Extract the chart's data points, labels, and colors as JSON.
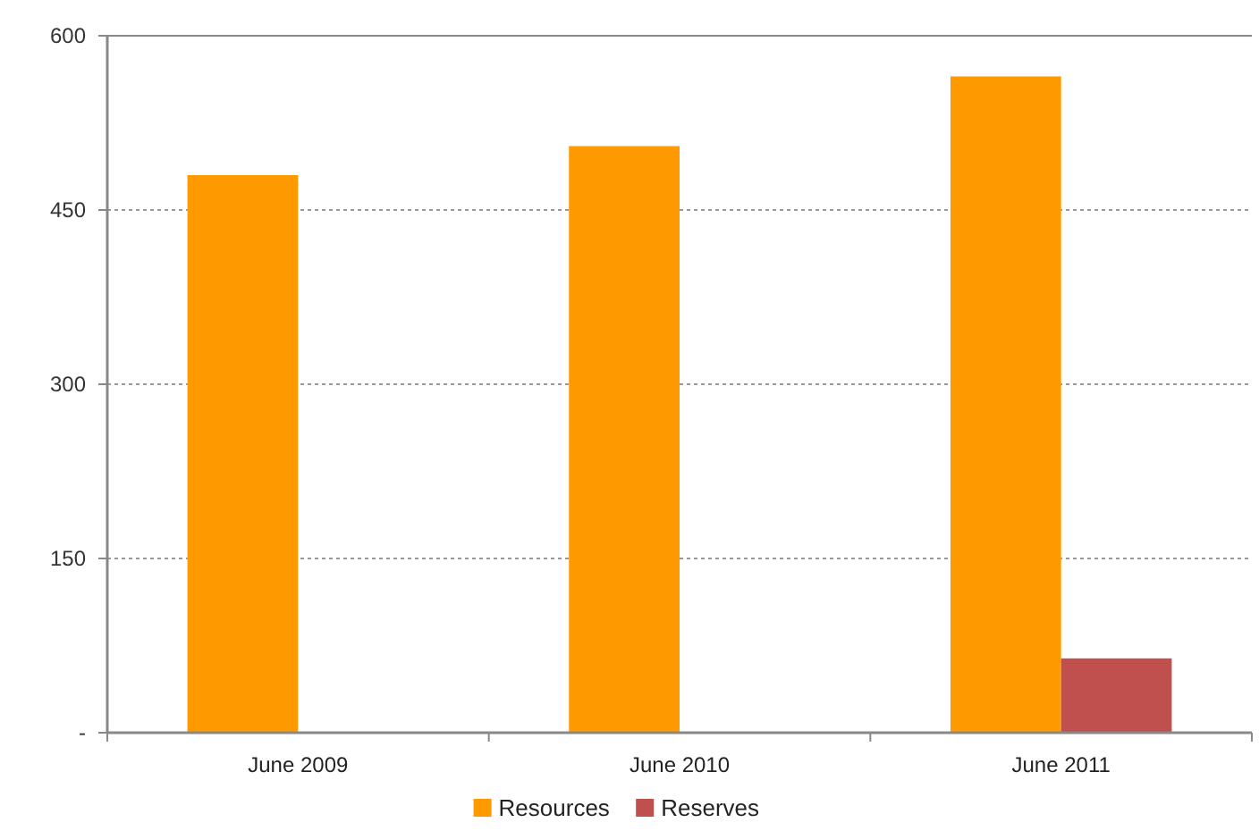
{
  "chart_data": {
    "type": "bar",
    "categories": [
      "June 2009",
      "June 2010",
      "June 2011"
    ],
    "series": [
      {
        "name": "Resources",
        "color": "#ff9900",
        "values": [
          480,
          505,
          565
        ]
      },
      {
        "name": "Reserves",
        "color": "#c0504d",
        "values": [
          null,
          null,
          64
        ]
      }
    ],
    "ylim": [
      0,
      600
    ],
    "yticks": [
      {
        "value": 0,
        "label": "-"
      },
      150,
      300,
      450,
      600
    ],
    "grid": "y",
    "legend": "bottom"
  }
}
